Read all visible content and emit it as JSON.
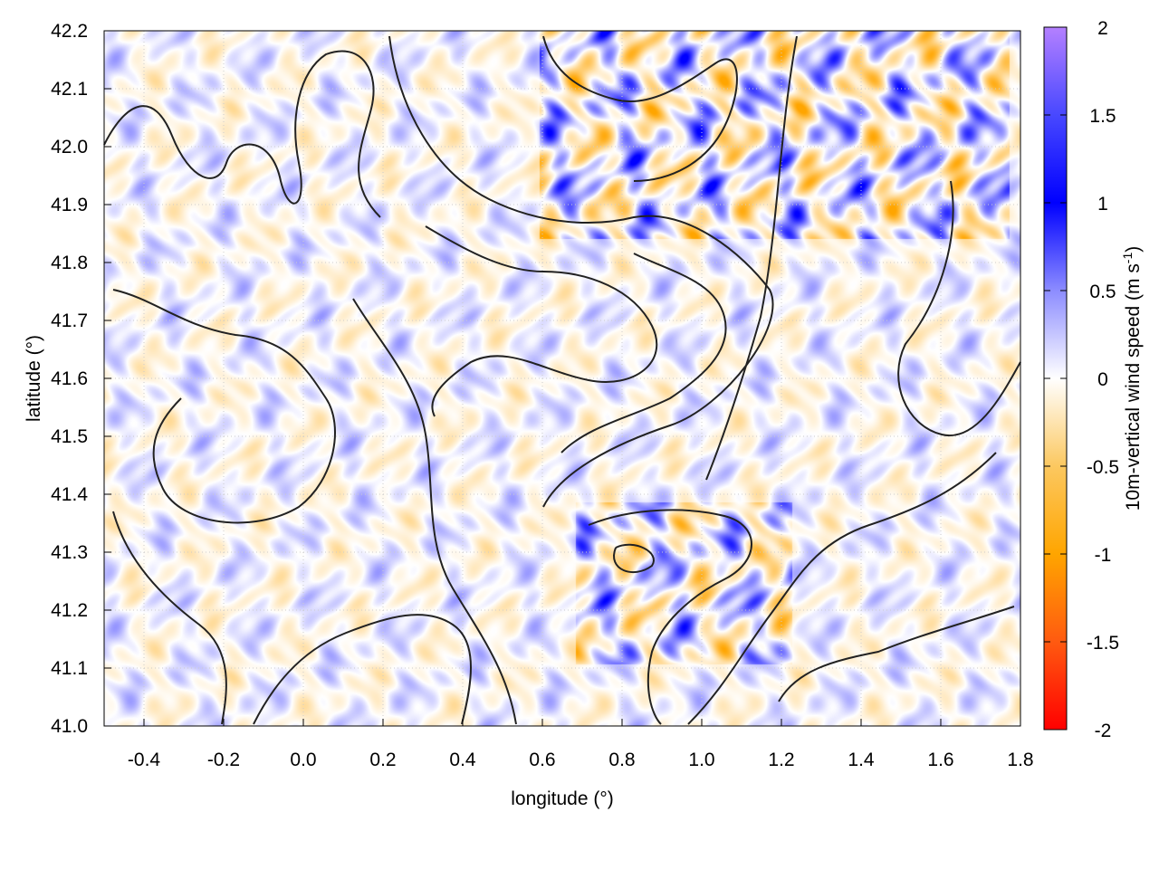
{
  "chart_data": {
    "type": "heatmap",
    "title": "",
    "xlabel": "longitude (°)",
    "ylabel": "latitude (°)",
    "xlim": [
      -0.5,
      1.8
    ],
    "ylim": [
      41.0,
      42.2
    ],
    "xticks": [
      "-0.4",
      "-0.2",
      "0.0",
      "0.2",
      "0.4",
      "0.6",
      "0.8",
      "1.0",
      "1.2",
      "1.4",
      "1.6",
      "1.8"
    ],
    "yticks": [
      "41.0",
      "41.1",
      "41.2",
      "41.3",
      "41.4",
      "41.5",
      "41.6",
      "41.7",
      "41.8",
      "41.9",
      "42.0",
      "42.1",
      "42.2"
    ],
    "grid": true,
    "colorbar": {
      "label": "10m-vertical wind speed (m s",
      "label_sup": "-1",
      "label_end": ")",
      "range": [
        -2,
        2
      ],
      "ticks": [
        "2",
        "1.5",
        "1",
        "0.5",
        "0",
        "-0.5",
        "-1",
        "-1.5",
        "-2"
      ],
      "colors": {
        "-2": "#ff0000",
        "-1.5": "#ff5a10",
        "-1": "#ffa500",
        "-0.5": "#fcc860",
        "0": "#ffffff",
        "0.5": "#8c8cff",
        "1": "#0000ff",
        "1.5": "#4848ff",
        "2": "#b480ff"
      }
    },
    "overlay": "terrain contour lines (black)"
  }
}
